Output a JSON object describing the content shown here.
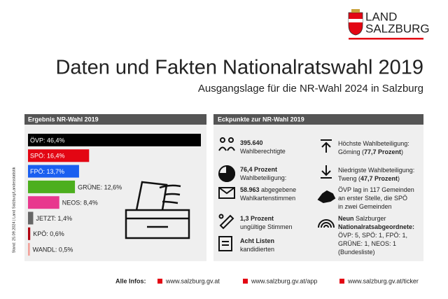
{
  "header": {
    "logo_line1": "LAND",
    "logo_line2": "SALZBURG",
    "title": "Daten und Fakten Nationalratswahl 2019",
    "subtitle": "Ausgangslage für die NR-Wahl 2024 in Salzburg"
  },
  "side_note": "Stand: 25.09.2024 | Land Salzburg/Landesstatistik",
  "chart_data": {
    "type": "bar",
    "orientation": "horizontal",
    "title": "Ergebnis NR-Wahl 2019",
    "values": [
      46.4,
      16.4,
      13.7,
      12.6,
      8.4,
      1.4,
      0.6,
      0.5
    ],
    "value_labels": [
      "ÖVP: 46,4%",
      "SPÖ: 16,4%",
      "FPÖ: 13,7%",
      "GRÜNE: 12,6%",
      "NEOS: 8,4%",
      "JETZT: 1,4%",
      "KPÖ: 0,6%",
      "WANDL: 0,5%"
    ],
    "colors": [
      "#000000",
      "#e30613",
      "#1a5ff0",
      "#4caf1e",
      "#e8388e",
      "#666666",
      "#b00010",
      "#f2a19a"
    ]
  },
  "key_points": {
    "title": "Eckpunkte zur NR-Wahl 2019",
    "items": [
      {
        "lines": [
          [
            {
              "text": "395.640",
              "bold": true
            }
          ],
          [
            {
              "text": "Wahlberechtigte"
            }
          ]
        ]
      },
      {
        "lines": [
          [
            {
              "text": "76,4 Prozent",
              "bold": true
            }
          ],
          [
            {
              "text": "Wahlbeteiligung:"
            }
          ]
        ]
      },
      {
        "lines": [
          [
            {
              "text": "58.963",
              "bold": true
            },
            {
              "text": " abgegebene"
            }
          ],
          [
            {
              "text": "Wahlkartenstimmen"
            }
          ]
        ]
      },
      {
        "lines": [
          [
            {
              "text": "1,3 Prozent",
              "bold": true
            }
          ],
          [
            {
              "text": "ungültige Stimmen"
            }
          ]
        ]
      },
      {
        "lines": [
          [
            {
              "text": "Acht Listen",
              "bold": true
            }
          ],
          [
            {
              "text": "kandidierten"
            }
          ]
        ]
      },
      {
        "lines": [
          [
            {
              "text": "Höchste Wahlbeteiligung:"
            }
          ],
          [
            {
              "text": "Göming ("
            },
            {
              "text": "77,7 Prozent",
              "bold": true
            },
            {
              "text": ")"
            }
          ]
        ]
      },
      {
        "lines": [
          [
            {
              "text": "Niedrigste Wahlbeteiligung:"
            }
          ],
          [
            {
              "text": "Tweng ("
            },
            {
              "text": "47,7 Prozent",
              "bold": true
            },
            {
              "text": ")"
            }
          ]
        ]
      },
      {
        "lines": [
          [
            {
              "text": "ÖVP lag in 117 Gemeinden"
            }
          ],
          [
            {
              "text": "an erster Stelle, die SPÖ"
            }
          ],
          [
            {
              "text": "in zwei Gemeinden"
            }
          ]
        ]
      },
      {
        "lines": [
          [
            {
              "text": "Neun",
              "bold": true
            },
            {
              "text": " Salzburger"
            }
          ],
          [
            {
              "text": "Nationalratsabgeordnete:",
              "bold": true
            }
          ],
          [
            {
              "text": "ÖVP: 5, SPÖ: 1, FPÖ: 1,"
            }
          ],
          [
            {
              "text": "GRÜNE: 1, NEOS: 1"
            }
          ],
          [
            {
              "text": "(Bundesliste)"
            }
          ]
        ]
      }
    ]
  },
  "footer": {
    "label": "Alle Infos:",
    "links": [
      "www.salzburg.gv.at",
      "www.salzburg.gv.at/app",
      "www.salzburg.gv.at/ticker"
    ]
  }
}
